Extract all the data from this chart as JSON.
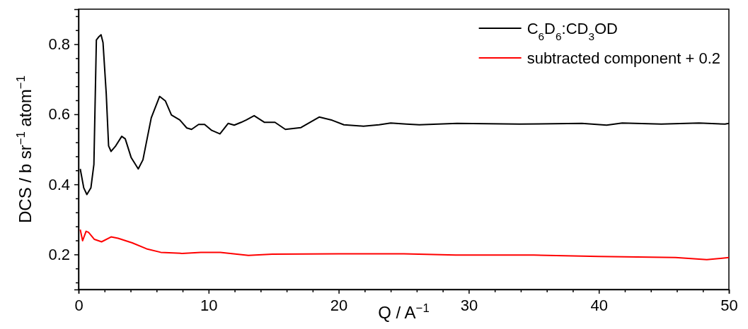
{
  "chart_data": {
    "type": "line",
    "xlabel": "Q / A$^{−1}$",
    "ylabel": "DCS / b sr$^{−1}$ atom$^{−1}$",
    "xlim": [
      0,
      50
    ],
    "xticks": [
      0,
      {
        "value": 2,
        "label": null
      },
      {
        "value": 4,
        "label": null
      },
      {
        "value": 6,
        "label": null
      },
      {
        "value": 8,
        "label": null
      },
      10,
      {
        "value": 12,
        "label": null
      },
      {
        "value": 14,
        "label": null
      },
      {
        "value": 16,
        "label": null
      },
      {
        "value": 18,
        "label": null
      },
      20,
      {
        "value": 22,
        "label": null
      },
      {
        "value": 24,
        "label": null
      },
      {
        "value": 26,
        "label": null
      },
      {
        "value": 28,
        "label": null
      },
      30,
      {
        "value": 32,
        "label": null
      },
      {
        "value": 34,
        "label": null
      },
      {
        "value": 36,
        "label": null
      },
      {
        "value": 38,
        "label": null
      },
      40,
      {
        "value": 42,
        "label": null
      },
      {
        "value": 44,
        "label": null
      },
      {
        "value": 46,
        "label": null
      },
      {
        "value": 48,
        "label": null
      },
      50
    ],
    "ylim": [
      0.1,
      0.9
    ],
    "yticks": [
      {
        "value": 0.12,
        "label": null
      },
      {
        "value": 0.16,
        "label": null
      },
      {
        "value": 0.2,
        "label": "0.2"
      },
      {
        "value": 0.24,
        "label": null
      },
      {
        "value": 0.28,
        "label": null
      },
      {
        "value": 0.32,
        "label": null
      },
      {
        "value": 0.36,
        "label": null
      },
      {
        "value": 0.4,
        "label": "0.4"
      },
      {
        "value": 0.44,
        "label": null
      },
      {
        "value": 0.48,
        "label": null
      },
      {
        "value": 0.52,
        "label": null
      },
      {
        "value": 0.56,
        "label": null
      },
      {
        "value": 0.6,
        "label": "0.6"
      },
      {
        "value": 0.64,
        "label": null
      },
      {
        "value": 0.68,
        "label": null
      },
      {
        "value": 0.72,
        "label": null
      },
      {
        "value": 0.76,
        "label": null
      },
      {
        "value": 0.8,
        "label": "0.8"
      },
      {
        "value": 0.84,
        "label": null
      },
      {
        "value": 0.88,
        "label": null
      }
    ],
    "legend": "top right",
    "grid": false,
    "line_style": "solid",
    "series": [
      {
        "name": "C$_{6}$D$_{6}$:CD$_{3}$OD",
        "color": "#000000",
        "x": [
          0.13,
          0.4,
          0.64,
          0.95,
          1.18,
          1.37,
          1.58,
          1.73,
          1.88,
          2.13,
          2.31,
          2.5,
          2.86,
          3.32,
          3.59,
          4.04,
          4.59,
          4.95,
          5.59,
          6.23,
          6.68,
          7.14,
          7.78,
          8.32,
          8.69,
          9.23,
          9.69,
          10.24,
          10.87,
          11.5,
          11.97,
          12.5,
          12.9,
          13.5,
          14.3,
          15.1,
          15.9,
          17.1,
          18.5,
          19.5,
          20.4,
          21.9,
          23.1,
          24.0,
          25.2,
          26.2,
          29.1,
          33.9,
          38.7,
          40.6,
          41.8,
          44.8,
          47.7,
          49.7,
          50
        ],
        "values": [
          0.444,
          0.39,
          0.371,
          0.39,
          0.457,
          0.812,
          0.822,
          0.827,
          0.805,
          0.658,
          0.51,
          0.494,
          0.51,
          0.537,
          0.53,
          0.477,
          0.444,
          0.47,
          0.59,
          0.651,
          0.638,
          0.598,
          0.584,
          0.561,
          0.557,
          0.571,
          0.571,
          0.554,
          0.544,
          0.574,
          0.569,
          0.577,
          0.584,
          0.596,
          0.577,
          0.577,
          0.557,
          0.562,
          0.592,
          0.583,
          0.57,
          0.566,
          0.57,
          0.575,
          0.572,
          0.57,
          0.574,
          0.572,
          0.574,
          0.569,
          0.575,
          0.572,
          0.575,
          0.572,
          0.574
        ]
      },
      {
        "name": "subtracted component + 0.2",
        "color": "#ff0000",
        "x": [
          0.13,
          0.31,
          0.58,
          0.77,
          1.22,
          1.77,
          2.5,
          3.04,
          4.13,
          5.23,
          6.32,
          7.96,
          9.4,
          10.9,
          13.06,
          14.9,
          20,
          25,
          29,
          35,
          40,
          45.9,
          48.3,
          50
        ],
        "values": [
          0.271,
          0.239,
          0.266,
          0.263,
          0.243,
          0.236,
          0.25,
          0.246,
          0.233,
          0.216,
          0.206,
          0.203,
          0.206,
          0.206,
          0.197,
          0.201,
          0.202,
          0.202,
          0.198,
          0.198,
          0.194,
          0.191,
          0.185,
          0.191
        ]
      }
    ]
  }
}
